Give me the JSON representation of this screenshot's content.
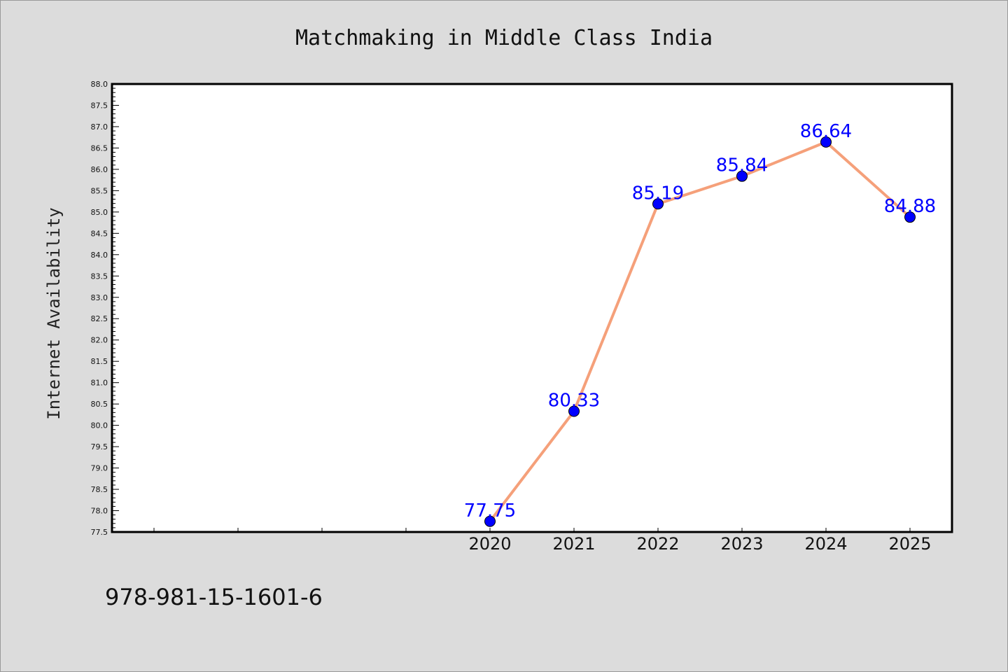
{
  "chart_data": {
    "type": "line",
    "title": "Matchmaking in Middle Class India",
    "xlabel": "",
    "ylabel": "Internet Availability",
    "categories": [
      "2020",
      "2021",
      "2022",
      "2023",
      "2024",
      "2025"
    ],
    "series": [
      {
        "values": [
          77.75,
          80.33,
          85.19,
          85.84,
          86.64,
          84.88
        ]
      }
    ],
    "data_labels": [
      "77.75",
      "80.33",
      "85.19",
      "85.84",
      "86.64",
      "84.88"
    ],
    "ylim": [
      77.5,
      88.0
    ],
    "ytick_labels": [
      "77.5",
      "78.0",
      "78.5",
      "79.0",
      "79.5",
      "80.0",
      "80.5",
      "81.0",
      "81.5",
      "82.0",
      "82.5",
      "83.0",
      "83.5",
      "84.0",
      "84.5",
      "85.0",
      "85.5",
      "86.0",
      "86.5",
      "87.0",
      "87.5",
      "88.0"
    ],
    "grid": false,
    "line_color": "#f5a07a",
    "marker_color": "#0000ff",
    "label_color": "#0000ff"
  },
  "footer": {
    "code": "978-981-15-1601-6"
  }
}
